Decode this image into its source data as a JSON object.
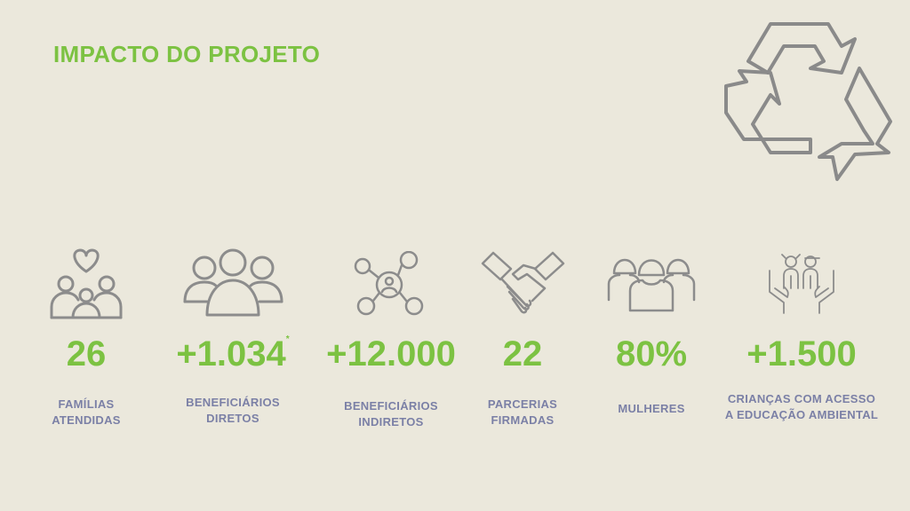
{
  "title": "IMPACTO DO PROJETO",
  "colors": {
    "accent": "#7cc242",
    "label": "#7b80a6",
    "icon": "#8c8c8c",
    "background": "#ebe8dc"
  },
  "recycle_icon": "recycle-icon",
  "stats": [
    {
      "icon": "family-heart-icon",
      "value": "26",
      "label_lines": [
        "FAMÍLIAS",
        "ATENDIDAS"
      ]
    },
    {
      "icon": "group-icon",
      "value": "+1.034",
      "marker": "*",
      "label_lines": [
        "BENEFICIÁRIOS",
        "DIRETOS"
      ]
    },
    {
      "icon": "network-icon",
      "value": "+12.000",
      "label_lines": [
        "BENEFICIÁRIOS",
        "INDIRETOS"
      ]
    },
    {
      "icon": "handshake-icon",
      "value": "22",
      "label_lines": [
        "PARCERIAS",
        "FIRMADAS"
      ]
    },
    {
      "icon": "women-icon",
      "value": "80%",
      "label_lines": [
        "MULHERES"
      ]
    },
    {
      "icon": "children-hands-icon",
      "value": "+1.500",
      "label_lines": [
        "CRIANÇAS COM ACESSO",
        "A EDUCAÇÃO AMBIENTAL"
      ]
    }
  ]
}
